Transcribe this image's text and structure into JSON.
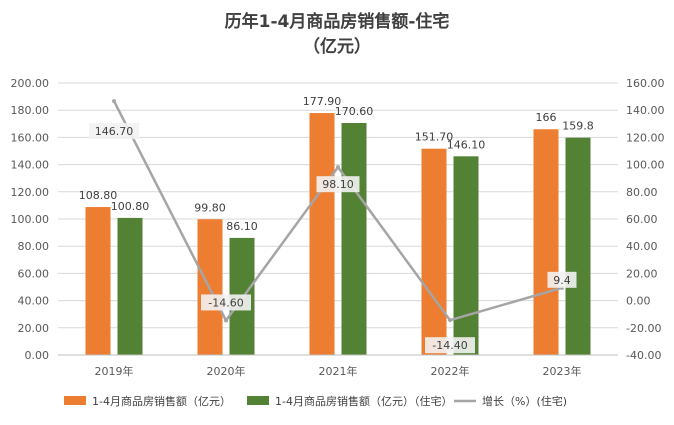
{
  "chart_data": {
    "type": "bar",
    "title_line1": "历年1-4月商品房销售额-住宅",
    "title_line2": "（亿元）",
    "categories": [
      "2019年",
      "2020年",
      "2021年",
      "2022年",
      "2023年"
    ],
    "series": [
      {
        "name": "1-4月商品房销售额（亿元）",
        "type": "bar",
        "axis": "left",
        "color": "#ED7D31",
        "values": [
          108.8,
          99.8,
          177.9,
          151.7,
          166
        ],
        "labels": [
          "108.80",
          "99.80",
          "177.90",
          "151.70",
          "166"
        ]
      },
      {
        "name": "1-4月商品房销售额（亿元）（住宅）",
        "type": "bar",
        "axis": "left",
        "color": "#548235",
        "values": [
          100.8,
          86.1,
          170.6,
          146.1,
          159.8
        ],
        "labels": [
          "100.80",
          "86.10",
          "170.60",
          "146.10",
          "159.8"
        ]
      },
      {
        "name": "增长（%）(住宅)",
        "type": "line",
        "axis": "right",
        "color": "#A5A5A5",
        "values": [
          146.7,
          -14.6,
          98.1,
          -14.4,
          9.4
        ],
        "labels": [
          "146.70",
          "-14.60",
          "98.10",
          "-14.40",
          "9.4"
        ]
      }
    ],
    "y_left": {
      "min": 0,
      "max": 200,
      "ticks": [
        "0.00",
        "20.00",
        "40.00",
        "60.00",
        "80.00",
        "100.00",
        "120.00",
        "140.00",
        "160.00",
        "180.00",
        "200.00"
      ]
    },
    "y_right": {
      "min": -40,
      "max": 160,
      "ticks": [
        "-40.00",
        "-20.00",
        "0.00",
        "20.00",
        "40.00",
        "60.00",
        "80.00",
        "100.00",
        "120.00",
        "140.00",
        "160.00"
      ]
    },
    "grid": true,
    "legend_position": "bottom"
  }
}
